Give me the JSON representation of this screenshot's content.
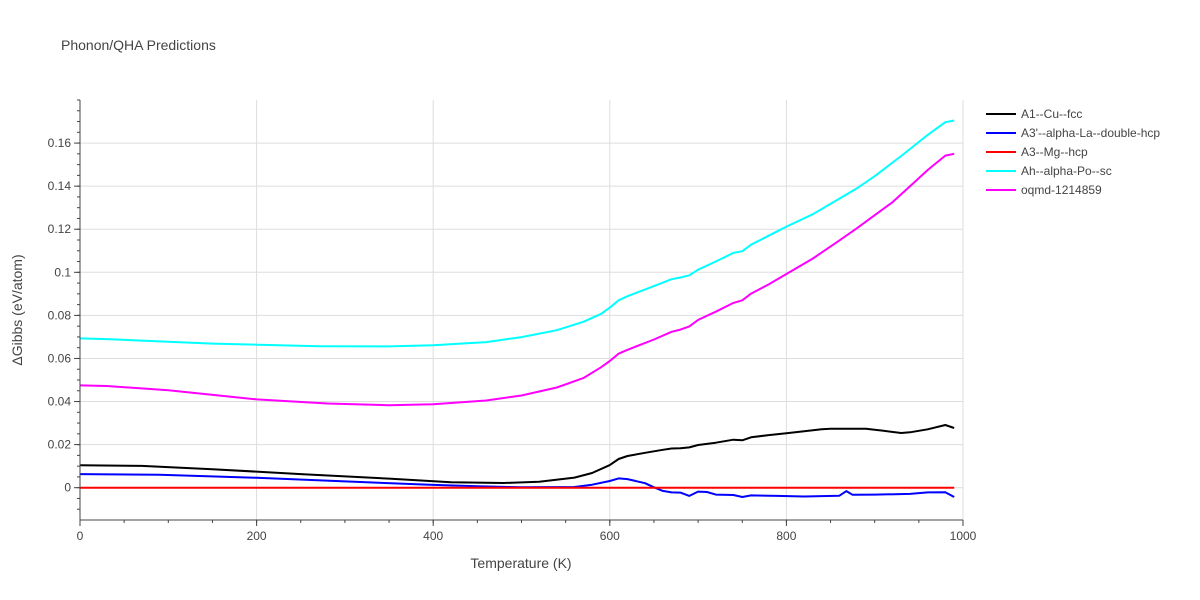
{
  "chart_data": {
    "type": "line",
    "title": "Phonon/QHA Predictions",
    "xlabel": "Temperature (K)",
    "ylabel": "ΔGibbs (eV/atom)",
    "xlim": [
      0,
      1000
    ],
    "ylim": [
      -0.015,
      0.18
    ],
    "xticks": [
      0,
      200,
      400,
      600,
      800,
      1000
    ],
    "xtick_labels": [
      "0",
      "200",
      "400",
      "600",
      "800",
      "1000"
    ],
    "yticks": [
      0,
      0.02,
      0.04,
      0.06,
      0.08,
      0.1,
      0.12,
      0.14,
      0.16
    ],
    "ytick_labels": [
      "0",
      "0.02",
      "0.04",
      "0.06",
      "0.08",
      "0.1",
      "0.12",
      "0.14",
      "0.16"
    ],
    "grid": true,
    "legend_position": "top-right",
    "series": [
      {
        "name": "A1--Cu--fcc",
        "color": "#000000",
        "points": [
          [
            0,
            0.0104
          ],
          [
            70,
            0.0101
          ],
          [
            150,
            0.0086
          ],
          [
            250,
            0.0063
          ],
          [
            350,
            0.0042
          ],
          [
            420,
            0.0025
          ],
          [
            480,
            0.0022
          ],
          [
            520,
            0.0028
          ],
          [
            560,
            0.0047
          ],
          [
            580,
            0.0068
          ],
          [
            600,
            0.0105
          ],
          [
            610,
            0.0133
          ],
          [
            620,
            0.0147
          ],
          [
            640,
            0.0162
          ],
          [
            660,
            0.0176
          ],
          [
            670,
            0.0182
          ],
          [
            680,
            0.0183
          ],
          [
            690,
            0.0187
          ],
          [
            700,
            0.0198
          ],
          [
            720,
            0.0209
          ],
          [
            740,
            0.0223
          ],
          [
            750,
            0.022
          ],
          [
            760,
            0.0234
          ],
          [
            780,
            0.0244
          ],
          [
            800,
            0.0253
          ],
          [
            820,
            0.0262
          ],
          [
            840,
            0.0271
          ],
          [
            850,
            0.0274
          ],
          [
            890,
            0.0274
          ],
          [
            910,
            0.0264
          ],
          [
            930,
            0.0254
          ],
          [
            940,
            0.0257
          ],
          [
            960,
            0.0271
          ],
          [
            980,
            0.0291
          ],
          [
            990,
            0.0277
          ]
        ]
      },
      {
        "name": "A3'--alpha-La--double-hcp",
        "color": "#0000ff",
        "points": [
          [
            0,
            0.0063
          ],
          [
            90,
            0.006
          ],
          [
            200,
            0.0046
          ],
          [
            300,
            0.0029
          ],
          [
            400,
            0.0013
          ],
          [
            450,
            0.0007
          ],
          [
            500,
            0.0002
          ],
          [
            560,
            0.0003
          ],
          [
            580,
            0.0014
          ],
          [
            600,
            0.0031
          ],
          [
            610,
            0.0043
          ],
          [
            620,
            0.004
          ],
          [
            640,
            0.0021
          ],
          [
            650,
            0.0002
          ],
          [
            660,
            -0.0015
          ],
          [
            670,
            -0.0022
          ],
          [
            680,
            -0.0023
          ],
          [
            690,
            -0.0038
          ],
          [
            700,
            -0.0018
          ],
          [
            710,
            -0.002
          ],
          [
            720,
            -0.0032
          ],
          [
            740,
            -0.0034
          ],
          [
            750,
            -0.0043
          ],
          [
            760,
            -0.0036
          ],
          [
            790,
            -0.0038
          ],
          [
            820,
            -0.0041
          ],
          [
            860,
            -0.0037
          ],
          [
            868,
            -0.0016
          ],
          [
            875,
            -0.0033
          ],
          [
            900,
            -0.0032
          ],
          [
            940,
            -0.0029
          ],
          [
            960,
            -0.0022
          ],
          [
            980,
            -0.0021
          ],
          [
            990,
            -0.0043
          ]
        ]
      },
      {
        "name": "A3--Mg--hcp",
        "color": "#ff0000",
        "points": [
          [
            0,
            0.0
          ],
          [
            990,
            0.0
          ]
        ]
      },
      {
        "name": "Ah--alpha-Po--sc",
        "color": "#00ffff",
        "points": [
          [
            0,
            0.0693
          ],
          [
            30,
            0.069
          ],
          [
            150,
            0.0669
          ],
          [
            270,
            0.0657
          ],
          [
            350,
            0.0656
          ],
          [
            400,
            0.0661
          ],
          [
            460,
            0.0676
          ],
          [
            500,
            0.0699
          ],
          [
            540,
            0.0731
          ],
          [
            570,
            0.077
          ],
          [
            590,
            0.0807
          ],
          [
            600,
            0.0836
          ],
          [
            610,
            0.087
          ],
          [
            620,
            0.0889
          ],
          [
            650,
            0.0936
          ],
          [
            670,
            0.0968
          ],
          [
            680,
            0.0976
          ],
          [
            690,
            0.0986
          ],
          [
            700,
            0.1012
          ],
          [
            720,
            0.105
          ],
          [
            740,
            0.109
          ],
          [
            750,
            0.1098
          ],
          [
            760,
            0.1128
          ],
          [
            780,
            0.117
          ],
          [
            800,
            0.1212
          ],
          [
            830,
            0.127
          ],
          [
            860,
            0.1342
          ],
          [
            880,
            0.139
          ],
          [
            900,
            0.1446
          ],
          [
            930,
            0.154
          ],
          [
            960,
            0.1638
          ],
          [
            980,
            0.1697
          ],
          [
            990,
            0.1705
          ]
        ]
      },
      {
        "name": "oqmd-1214859",
        "color": "#ff00ff",
        "points": [
          [
            0,
            0.0475
          ],
          [
            30,
            0.0472
          ],
          [
            100,
            0.0452
          ],
          [
            200,
            0.041
          ],
          [
            280,
            0.0391
          ],
          [
            350,
            0.0383
          ],
          [
            400,
            0.0387
          ],
          [
            460,
            0.0405
          ],
          [
            500,
            0.0428
          ],
          [
            540,
            0.0465
          ],
          [
            570,
            0.0509
          ],
          [
            590,
            0.0559
          ],
          [
            600,
            0.0588
          ],
          [
            610,
            0.0622
          ],
          [
            620,
            0.064
          ],
          [
            650,
            0.0688
          ],
          [
            670,
            0.0724
          ],
          [
            680,
            0.0734
          ],
          [
            690,
            0.0749
          ],
          [
            700,
            0.0779
          ],
          [
            720,
            0.0817
          ],
          [
            740,
            0.0858
          ],
          [
            750,
            0.087
          ],
          [
            760,
            0.0901
          ],
          [
            780,
            0.0944
          ],
          [
            800,
            0.0992
          ],
          [
            830,
            0.1064
          ],
          [
            860,
            0.1148
          ],
          [
            880,
            0.1205
          ],
          [
            900,
            0.1265
          ],
          [
            920,
            0.1325
          ],
          [
            940,
            0.14
          ],
          [
            960,
            0.1475
          ],
          [
            980,
            0.1542
          ],
          [
            990,
            0.155
          ]
        ]
      }
    ]
  }
}
